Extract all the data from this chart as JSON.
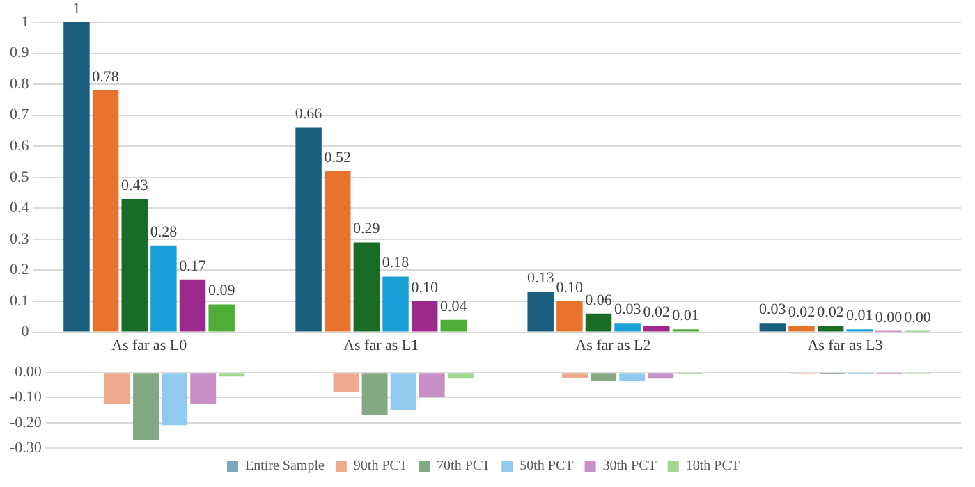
{
  "chart_data": [
    {
      "type": "bar",
      "categories": [
        "As far as L0",
        "As far as L1",
        "As far as L2",
        "As far as L3"
      ],
      "ylim": [
        0,
        1
      ],
      "yticks": [
        0,
        0.1,
        0.2,
        0.3,
        0.4,
        0.5,
        0.6,
        0.7,
        0.8,
        0.9,
        1
      ],
      "grid": "y",
      "legend": false,
      "series": [
        {
          "color": "#1a5e80",
          "values": [
            1,
            0.66,
            0.13,
            0.03
          ],
          "value_labels": [
            "1",
            "0.66",
            "0.13",
            "0.03"
          ]
        },
        {
          "color": "#e8732f",
          "values": [
            0.78,
            0.52,
            0.1,
            0.02
          ],
          "value_labels": [
            "0.78",
            "0.52",
            "0.10",
            "0.02"
          ]
        },
        {
          "color": "#1a6b26",
          "values": [
            0.43,
            0.29,
            0.06,
            0.02
          ],
          "value_labels": [
            "0.43",
            "0.29",
            "0.06",
            "0.02"
          ]
        },
        {
          "color": "#1aa0d8",
          "values": [
            0.28,
            0.18,
            0.03,
            0.01
          ],
          "value_labels": [
            "0.28",
            "0.18",
            "0.03",
            "0.01"
          ]
        },
        {
          "color": "#9c2a8c",
          "values": [
            0.17,
            0.1,
            0.02,
            0.004
          ],
          "value_labels": [
            "0.17",
            "0.10",
            "0.02",
            "0.00"
          ]
        },
        {
          "color": "#4fae3a",
          "values": [
            0.09,
            0.04,
            0.01,
            0.004
          ],
          "value_labels": [
            "0.09",
            "0.04",
            "0.01",
            "0.00"
          ]
        }
      ]
    },
    {
      "type": "bar",
      "categories": [
        null,
        null,
        null,
        null
      ],
      "ylim": [
        -0.3,
        0
      ],
      "yticks": [
        {
          "value": 0,
          "label": "0.00"
        },
        {
          "value": -0.1,
          "label": "-0.10"
        },
        {
          "value": -0.2,
          "label": "-0.20"
        },
        {
          "value": -0.3,
          "label": "-0.30"
        }
      ],
      "grid": "y",
      "legend": "bottom",
      "tick_labels": "y",
      "series": [
        {
          "name": "Entire Sample",
          "color": "#7fa6c0",
          "values": [
            0,
            0,
            0,
            0
          ]
        },
        {
          "name": "90th PCT",
          "color": "#eea98e",
          "values": [
            -0.125,
            -0.077,
            -0.023,
            -0.004
          ]
        },
        {
          "name": "70th PCT",
          "color": "#82a982",
          "values": [
            -0.267,
            -0.17,
            -0.035,
            -0.006
          ]
        },
        {
          "name": "50th PCT",
          "color": "#92c9ee",
          "values": [
            -0.21,
            -0.148,
            -0.035,
            -0.006
          ]
        },
        {
          "name": "30th PCT",
          "color": "#c78fc6",
          "values": [
            -0.125,
            -0.096,
            -0.025,
            -0.006
          ]
        },
        {
          "name": "10th PCT",
          "color": "#a2d690",
          "values": [
            -0.017,
            -0.025,
            -0.008,
            -0.004
          ]
        }
      ]
    }
  ]
}
